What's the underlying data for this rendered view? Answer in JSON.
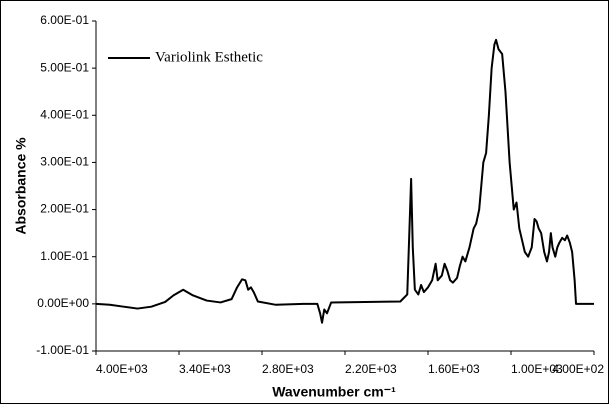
{
  "chart_data": {
    "type": "line",
    "xlabel": "Wavenumber cm⁻¹",
    "ylabel": "Absorbance %",
    "xlim": [
      4000,
      400
    ],
    "ylim": [
      -0.1,
      0.6
    ],
    "xticks": [
      {
        "value": 4000,
        "label": "4.00E+03"
      },
      {
        "value": 3400,
        "label": "3.40E+03"
      },
      {
        "value": 2800,
        "label": "2.80E+03"
      },
      {
        "value": 2200,
        "label": "2.20E+03"
      },
      {
        "value": 1600,
        "label": "1.60E+03"
      },
      {
        "value": 1000,
        "label": "1.00E+03"
      },
      {
        "value": 400,
        "label": "4.00E+02"
      }
    ],
    "yticks": [
      {
        "value": -0.1,
        "label": "-1.00E-01"
      },
      {
        "value": 0,
        "label": "0.00E+00"
      },
      {
        "value": 0.1,
        "label": "1.00E-01"
      },
      {
        "value": 0.2,
        "label": "2.00E-01"
      },
      {
        "value": 0.3,
        "label": "3.00E-01"
      },
      {
        "value": 0.4,
        "label": "4.00E-01"
      },
      {
        "value": 0.5,
        "label": "5.00E-01"
      },
      {
        "value": 0.6,
        "label": "6.00E-01"
      }
    ],
    "grid": false,
    "legend": "upper-left",
    "x": [
      4000,
      3900,
      3800,
      3700,
      3600,
      3500,
      3440,
      3370,
      3300,
      3200,
      3100,
      3020,
      2980,
      2944,
      2920,
      2900,
      2880,
      2860,
      2830,
      2700,
      2500,
      2400,
      2380,
      2366,
      2350,
      2330,
      2300,
      1800,
      1750,
      1735,
      1722,
      1710,
      1695,
      1670,
      1650,
      1630,
      1600,
      1570,
      1545,
      1530,
      1500,
      1480,
      1460,
      1440,
      1420,
      1390,
      1370,
      1350,
      1330,
      1300,
      1270,
      1252,
      1230,
      1200,
      1180,
      1160,
      1140,
      1120,
      1108,
      1090,
      1064,
      1040,
      1010,
      980,
      960,
      940,
      900,
      876,
      850,
      830,
      815,
      800,
      782,
      760,
      740,
      725,
      712,
      700,
      680,
      665,
      650,
      630,
      610,
      594,
      575,
      558,
      540,
      530,
      400
    ],
    "series": [
      {
        "name": "Variolink Esthetic",
        "color": "#000000",
        "values": [
          0,
          -0.002,
          -0.006,
          -0.01,
          -0.006,
          0.004,
          0.018,
          0.03,
          0.018,
          0.007,
          0.003,
          0.01,
          0.035,
          0.052,
          0.05,
          0.03,
          0.035,
          0.025,
          0.005,
          -0.002,
          0,
          0,
          -0.02,
          -0.04,
          -0.012,
          -0.02,
          0.003,
          0.005,
          0.02,
          0.15,
          0.265,
          0.12,
          0.03,
          0.02,
          0.04,
          0.025,
          0.035,
          0.05,
          0.085,
          0.05,
          0.06,
          0.085,
          0.07,
          0.05,
          0.045,
          0.055,
          0.08,
          0.1,
          0.09,
          0.12,
          0.16,
          0.17,
          0.2,
          0.3,
          0.32,
          0.4,
          0.5,
          0.55,
          0.56,
          0.54,
          0.53,
          0.45,
          0.3,
          0.2,
          0.215,
          0.16,
          0.11,
          0.1,
          0.12,
          0.18,
          0.175,
          0.16,
          0.15,
          0.11,
          0.09,
          0.11,
          0.15,
          0.12,
          0.1,
          0.12,
          0.13,
          0.14,
          0.135,
          0.145,
          0.13,
          0.11,
          0.05,
          0,
          0
        ]
      }
    ]
  }
}
